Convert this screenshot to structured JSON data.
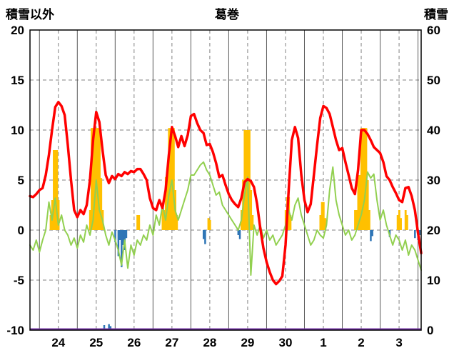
{
  "header": {
    "title": "葛巻",
    "left_axis_caption": "積雪以外",
    "right_axis_caption": "積雪"
  },
  "chart_data": {
    "type": "composite",
    "title": "葛巻",
    "x_axis": {
      "unit": "hours",
      "range_hours": [
        0,
        248
      ],
      "day_tick_labels": [
        "24",
        "25",
        "26",
        "27",
        "28",
        "29",
        "30",
        "1",
        "2",
        "3"
      ],
      "label_positions_hours": [
        18,
        42,
        66,
        90,
        114,
        138,
        162,
        186,
        210,
        234
      ],
      "solid_gridlines_hours": [
        6,
        30,
        54,
        78,
        102,
        126,
        150,
        174,
        198,
        222,
        246
      ],
      "dashed_gridlines_hours": [
        18,
        42,
        66,
        90,
        114,
        138,
        162,
        186,
        210,
        234
      ]
    },
    "y_left": {
      "caption": "積雪以外",
      "min": -10,
      "max": 20,
      "ticks": [
        20,
        15,
        10,
        5,
        0,
        -5,
        -10
      ],
      "gridline_values": [
        15,
        10,
        5,
        0,
        -5
      ]
    },
    "y_right": {
      "caption": "積雪",
      "min": 0,
      "max": 60,
      "ticks": [
        60,
        50,
        40,
        30,
        20,
        10,
        0
      ]
    },
    "colors": {
      "background": "#FFFFFF",
      "border": "#000000",
      "grid_solid": "#595959",
      "grid_dashed": "#808080",
      "red_line": "#FF0000",
      "green_line": "#92D050",
      "orange_bars": "#FFC000",
      "blue_bars": "#2E75B6",
      "purple_line": "#7030A0"
    },
    "series": {
      "red_line": {
        "axis": "left",
        "start_hour": 0,
        "step_hours": 2,
        "values": [
          3.4,
          3.3,
          3.6,
          4.0,
          4.2,
          5.5,
          7.5,
          10.0,
          12.3,
          12.8,
          12.4,
          11.5,
          8.5,
          5.0,
          2.0,
          1.3,
          2.0,
          1.6,
          2.5,
          5.0,
          9.0,
          11.8,
          10.8,
          8.0,
          5.5,
          4.7,
          5.4,
          5.1,
          5.6,
          5.4,
          5.8,
          5.6,
          5.9,
          5.8,
          6.1,
          6.1,
          5.6,
          5.0,
          3.2,
          2.2,
          2.0,
          3.0,
          2.2,
          4.0,
          7.5,
          10.3,
          9.4,
          8.3,
          9.4,
          8.4,
          9.5,
          11.4,
          11.6,
          10.7,
          10.0,
          9.7,
          8.5,
          8.6,
          7.8,
          6.7,
          5.3,
          5.5,
          4.5,
          3.6,
          3.0,
          2.6,
          2.3,
          3.2,
          4.8,
          5.1,
          4.9,
          4.3,
          2.6,
          0.2,
          -1.8,
          -3.2,
          -4.2,
          -5.0,
          -5.4,
          -5.1,
          -4.6,
          -1.5,
          4.0,
          9.0,
          10.3,
          9.2,
          5.5,
          3.0,
          1.8,
          2.6,
          5.5,
          8.5,
          11.2,
          12.4,
          12.2,
          11.6,
          10.3,
          9.0,
          8.0,
          8.2,
          6.8,
          5.5,
          4.2,
          3.6,
          6.0,
          10.0,
          10.0,
          9.6,
          9.0,
          8.3,
          8.0,
          7.7,
          6.8,
          5.4,
          5.0,
          4.3,
          3.7,
          3.0,
          2.8,
          4.2,
          4.3,
          3.4,
          2.0,
          -0.3,
          -2.3
        ]
      },
      "green_line": {
        "axis": "left",
        "start_hour": 0,
        "step_hours": 2,
        "values": [
          -1.5,
          -2.0,
          -1.0,
          -2.2,
          -1.0,
          0.0,
          2.8,
          1.0,
          3.2,
          0.5,
          1.5,
          0.0,
          -0.5,
          -1.5,
          -0.8,
          -1.8,
          -0.5,
          -1.2,
          0.5,
          -0.5,
          1.0,
          5.0,
          2.0,
          1.0,
          -0.5,
          -1.5,
          -0.2,
          -1.0,
          -2.0,
          -3.5,
          -1.0,
          -3.8,
          -1.5,
          -2.5,
          -1.0,
          -1.5,
          -0.5,
          -1.0,
          0.5,
          -0.5,
          1.5,
          0.5,
          2.5,
          1.0,
          3.5,
          5.0,
          2.0,
          1.0,
          2.0,
          3.0,
          4.0,
          5.5,
          5.5,
          6.0,
          6.5,
          6.8,
          6.0,
          5.5,
          4.5,
          3.5,
          3.8,
          2.5,
          2.0,
          1.5,
          1.0,
          0.5,
          0.0,
          1.0,
          3.5,
          5.3,
          -4.5,
          0.5,
          -0.5,
          0.5,
          -0.8,
          0.0,
          -1.0,
          -0.5,
          -1.5,
          -1.0,
          -0.5,
          0.5,
          2.0,
          1.0,
          2.5,
          3.2,
          1.5,
          0.5,
          -0.5,
          -1.5,
          -1.0,
          0.0,
          -0.5,
          -0.8,
          0.5,
          4.0,
          6.3,
          3.0,
          1.5,
          0.5,
          -0.5,
          0.0,
          -1.0,
          -0.5,
          0.5,
          1.5,
          3.0,
          5.8,
          5.2,
          5.6,
          3.0,
          1.0,
          2.0,
          0.5,
          -0.5,
          -1.5,
          -0.5,
          -1.0,
          -2.0,
          -1.0,
          -2.5,
          -1.5,
          -2.0,
          -3.0,
          -4.0
        ]
      },
      "orange_bars": {
        "axis": "left",
        "bars": [
          [
            13,
            1.5
          ],
          [
            14,
            3.0
          ],
          [
            15,
            8.0
          ],
          [
            16,
            8.0
          ],
          [
            17,
            8.0
          ],
          [
            18,
            3.0
          ],
          [
            38,
            2.0
          ],
          [
            39,
            10.2
          ],
          [
            40,
            10.2
          ],
          [
            41,
            10.2
          ],
          [
            42,
            10.2
          ],
          [
            43,
            10.2
          ],
          [
            44,
            10.2
          ],
          [
            45,
            5.2
          ],
          [
            46,
            2.0
          ],
          [
            68,
            1.5
          ],
          [
            69,
            1.5
          ],
          [
            84,
            2.0
          ],
          [
            85,
            2.0
          ],
          [
            86,
            5.3
          ],
          [
            87,
            5.3
          ],
          [
            88,
            10.2
          ],
          [
            89,
            10.2
          ],
          [
            90,
            10.2
          ],
          [
            91,
            10.2
          ],
          [
            92,
            4.0
          ],
          [
            93,
            1.5
          ],
          [
            113,
            1.2
          ],
          [
            114,
            1.0
          ],
          [
            134,
            2.0
          ],
          [
            135,
            5.0
          ],
          [
            136,
            10.0
          ],
          [
            137,
            10.0
          ],
          [
            138,
            10.0
          ],
          [
            139,
            10.0
          ],
          [
            140,
            4.0
          ],
          [
            141,
            1.5
          ],
          [
            162,
            2.0
          ],
          [
            163,
            3.3
          ],
          [
            164,
            3.3
          ],
          [
            165,
            1.5
          ],
          [
            184,
            1.5
          ],
          [
            185,
            2.8
          ],
          [
            186,
            2.8
          ],
          [
            187,
            1.2
          ],
          [
            206,
            2.0
          ],
          [
            207,
            2.0
          ],
          [
            208,
            5.5
          ],
          [
            209,
            5.5
          ],
          [
            210,
            10.2
          ],
          [
            211,
            10.2
          ],
          [
            212,
            10.2
          ],
          [
            213,
            10.2
          ],
          [
            214,
            5.0
          ],
          [
            215,
            2.0
          ],
          [
            233,
            1.5
          ],
          [
            234,
            2.0
          ],
          [
            235,
            1.2
          ],
          [
            238,
            2.0
          ],
          [
            239,
            1.5
          ]
        ]
      },
      "blue_bars": {
        "axis": "left",
        "bars": [
          [
            54,
            -1.2
          ],
          [
            56,
            -2.6
          ],
          [
            57,
            -1.0
          ],
          [
            58,
            -3.7
          ],
          [
            59,
            -1.5
          ],
          [
            60,
            -2.0
          ],
          [
            61,
            -0.8
          ],
          [
            110,
            -0.9
          ],
          [
            111,
            -1.4
          ],
          [
            132,
            -0.5
          ],
          [
            133,
            -0.9
          ],
          [
            216,
            -1.1
          ],
          [
            217,
            -0.6
          ],
          [
            228,
            -0.7
          ],
          [
            244,
            -0.8
          ],
          [
            246,
            -1.0
          ],
          [
            247,
            -0.5
          ]
        ]
      },
      "snow_bottom_bars": {
        "axis": "right",
        "bars": [
          [
            47,
            1.0
          ],
          [
            50,
            1.2
          ],
          [
            51,
            0.8
          ]
        ]
      },
      "purple_line": {
        "axis": "right",
        "constant": 0
      }
    }
  }
}
